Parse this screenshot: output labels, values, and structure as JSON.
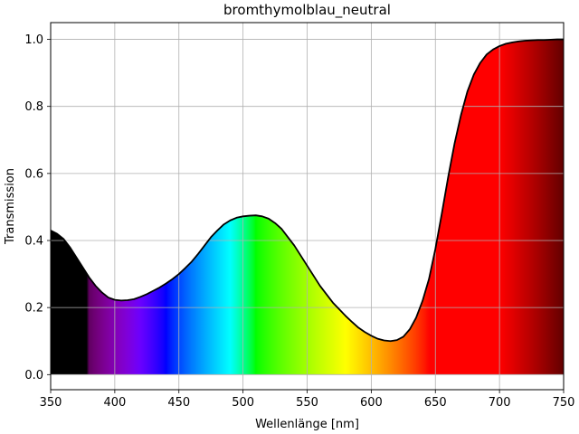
{
  "chart_data": {
    "type": "area",
    "title": "bromthymolblau_neutral",
    "xlabel": "Wellenlänge [nm]",
    "ylabel": "Transmission",
    "xlim": [
      350,
      750
    ],
    "ylim": [
      -0.045,
      1.05
    ],
    "grid": true,
    "fill": "visible-spectrum",
    "xticks": [
      350,
      400,
      450,
      500,
      550,
      600,
      650,
      700,
      750
    ],
    "yticks": [
      0.0,
      0.2,
      0.4,
      0.6,
      0.8,
      1.0
    ],
    "xtick_labels": [
      "350",
      "400",
      "450",
      "500",
      "550",
      "600",
      "650",
      "700",
      "750"
    ],
    "ytick_labels": [
      "0.0",
      "0.2",
      "0.4",
      "0.6",
      "0.8",
      "1.0"
    ],
    "series": [
      {
        "color": "#000000",
        "x": [
          350,
          355,
          360,
          365,
          370,
          375,
          380,
          385,
          390,
          395,
          400,
          405,
          410,
          415,
          420,
          425,
          430,
          435,
          440,
          445,
          450,
          455,
          460,
          465,
          470,
          475,
          480,
          485,
          490,
          495,
          500,
          505,
          510,
          515,
          520,
          525,
          530,
          535,
          540,
          545,
          550,
          555,
          560,
          565,
          570,
          575,
          580,
          585,
          590,
          595,
          600,
          605,
          610,
          615,
          620,
          625,
          630,
          635,
          640,
          645,
          650,
          655,
          660,
          665,
          670,
          675,
          680,
          685,
          690,
          695,
          700,
          705,
          710,
          715,
          720,
          725,
          730,
          735,
          740,
          745,
          750
        ],
        "y": [
          0.43,
          0.42,
          0.405,
          0.38,
          0.35,
          0.32,
          0.29,
          0.265,
          0.245,
          0.23,
          0.223,
          0.221,
          0.222,
          0.225,
          0.232,
          0.24,
          0.25,
          0.26,
          0.272,
          0.285,
          0.3,
          0.318,
          0.337,
          0.36,
          0.385,
          0.41,
          0.43,
          0.448,
          0.46,
          0.468,
          0.472,
          0.474,
          0.475,
          0.472,
          0.465,
          0.452,
          0.435,
          0.41,
          0.385,
          0.355,
          0.325,
          0.295,
          0.265,
          0.24,
          0.215,
          0.195,
          0.175,
          0.157,
          0.14,
          0.127,
          0.116,
          0.107,
          0.102,
          0.1,
          0.103,
          0.113,
          0.135,
          0.17,
          0.22,
          0.285,
          0.375,
          0.48,
          0.59,
          0.69,
          0.775,
          0.845,
          0.895,
          0.93,
          0.955,
          0.97,
          0.98,
          0.987,
          0.991,
          0.994,
          0.996,
          0.997,
          0.998,
          0.998,
          0.999,
          1.0,
          1.0
        ]
      }
    ]
  }
}
